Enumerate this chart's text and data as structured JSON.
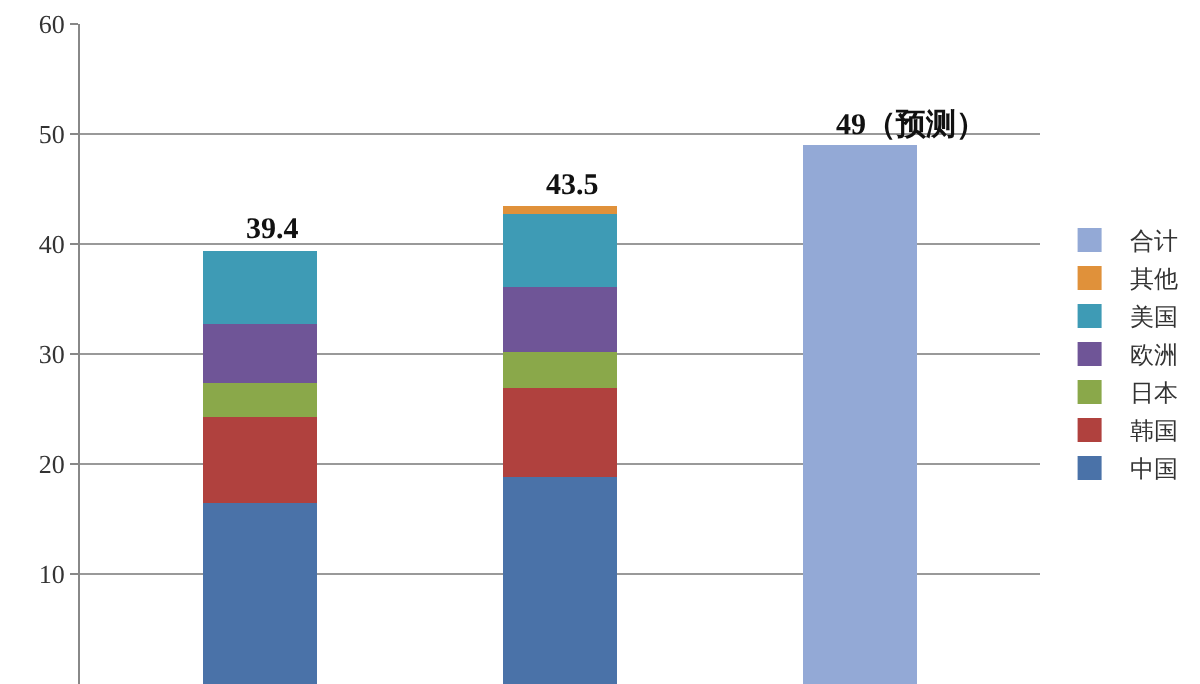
{
  "chart_data": {
    "type": "bar",
    "stacked": true,
    "categories": [
      null,
      null,
      null
    ],
    "series": [
      {
        "name": "中国",
        "color": "#4a72a8",
        "values": [
          16.5,
          18.8,
          null
        ]
      },
      {
        "name": "韩国",
        "color": "#b0413e",
        "values": [
          7.8,
          8.1,
          null
        ]
      },
      {
        "name": "日本",
        "color": "#8aa84a",
        "values": [
          3.1,
          3.3,
          null
        ]
      },
      {
        "name": "欧洲",
        "color": "#6f5597",
        "values": [
          5.3,
          5.9,
          null
        ]
      },
      {
        "name": "美国",
        "color": "#3e9bb5",
        "values": [
          6.7,
          6.6,
          null
        ]
      },
      {
        "name": "其他",
        "color": "#e0913a",
        "values": [
          null,
          0.8,
          null
        ]
      },
      {
        "name": "合计",
        "color": "#93a9d6",
        "values": [
          null,
          null,
          49
        ]
      }
    ],
    "totals": [
      "39.4",
      "43.5",
      "49（预测）"
    ],
    "ylim": [
      0,
      60
    ],
    "yticks": [
      10,
      20,
      30,
      40,
      50,
      60
    ],
    "grid": "y",
    "legend": "right",
    "tick_labels": "y"
  }
}
